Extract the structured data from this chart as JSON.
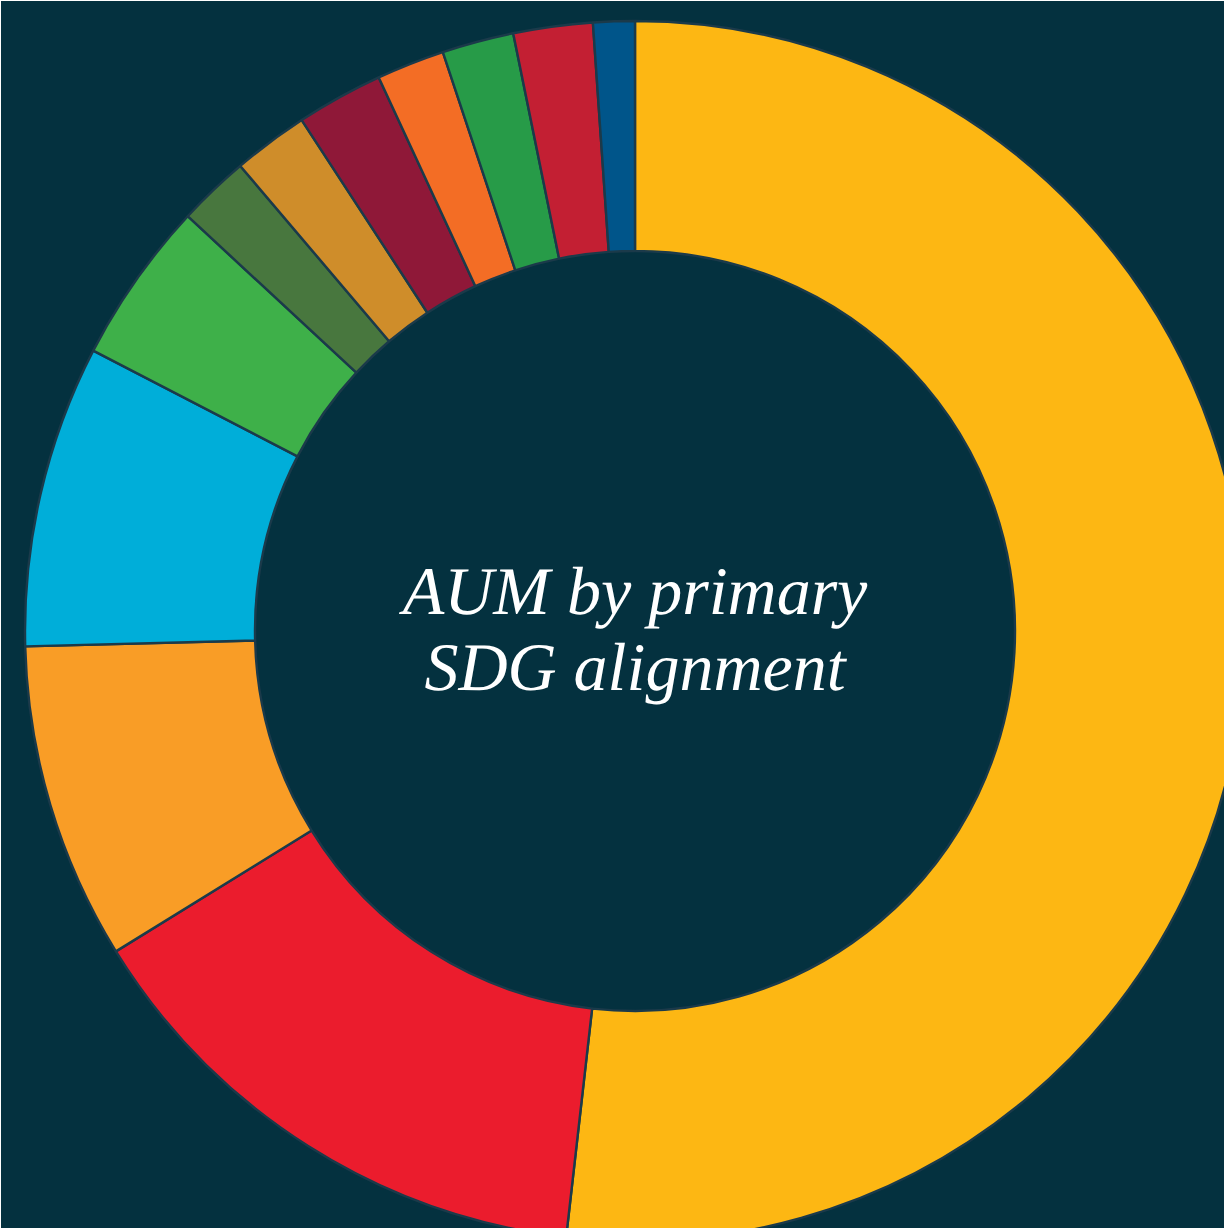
{
  "chart_data": {
    "type": "donut",
    "title": "AUM by primary SDG alignment",
    "categories": [
      null,
      null,
      null,
      null,
      null,
      null,
      null,
      null,
      null,
      null,
      null,
      null
    ],
    "values": [
      51.8,
      14.4,
      8.4,
      8.0,
      4.3,
      1.9,
      2.0,
      2.3,
      1.8,
      1.9,
      2.1,
      1.1
    ],
    "colors": [
      "#fdb713",
      "#eb1c2d",
      "#f99d26",
      "#00aed9",
      "#3eb049",
      "#48773e",
      "#cf8d2a",
      "#8f1838",
      "#f36d25",
      "#279b48",
      "#c31f33",
      "#00558a"
    ]
  }
}
